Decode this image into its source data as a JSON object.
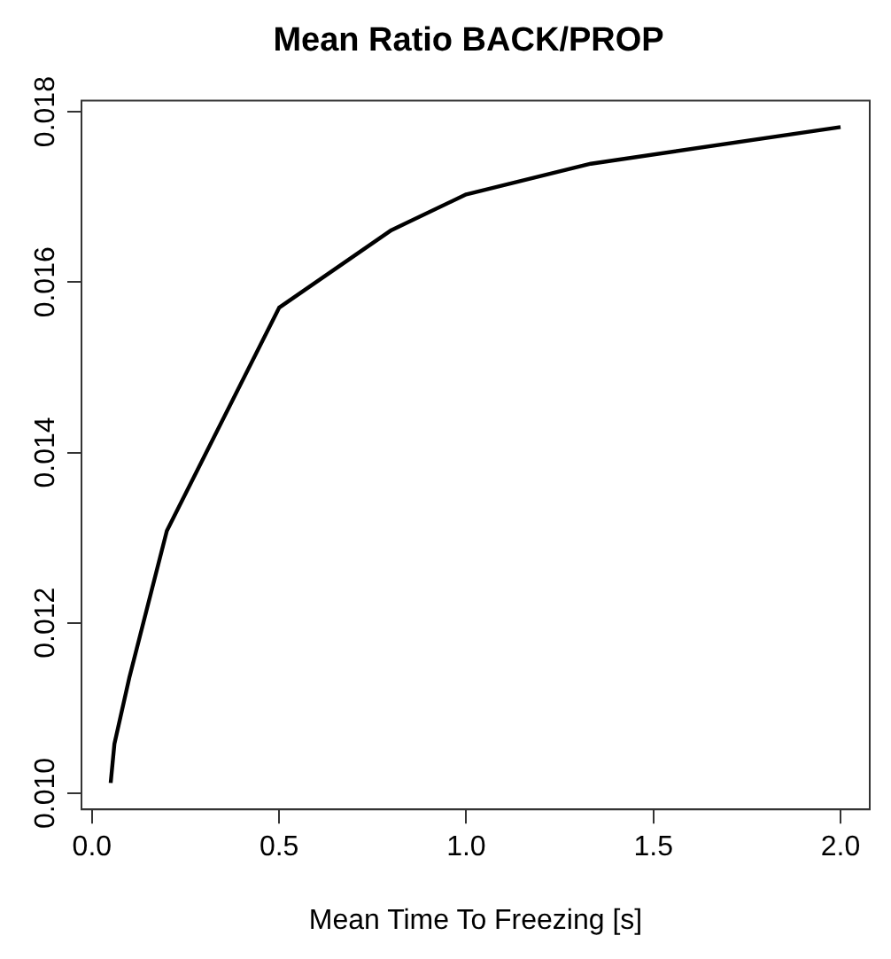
{
  "chart_data": {
    "type": "line",
    "title": "Mean Ratio BACK/PROP",
    "xlabel": "Mean Time To Freezing [s]",
    "x": [
      0.05,
      0.06,
      0.1,
      0.2,
      0.5,
      0.8,
      1.0,
      1.333,
      2.0
    ],
    "series": [
      {
        "color": "#000000",
        "values": [
          0.01012,
          0.01058,
          0.01136,
          0.01308,
          0.0157,
          0.01661,
          0.01703,
          0.01739,
          0.01782
        ]
      }
    ],
    "xlim": [
      -0.028,
      2.078
    ],
    "xticks": [
      {
        "value": 0,
        "label": "0.0"
      },
      {
        "value": 0.5,
        "label": "0.5"
      },
      {
        "value": 1,
        "label": "1.0"
      },
      {
        "value": 1.5,
        "label": "1.5"
      },
      {
        "value": 2,
        "label": "2.0"
      }
    ],
    "ylim": [
      0.00981,
      0.01813
    ],
    "yticks": [
      {
        "value": 0.01,
        "label": "0.010"
      },
      {
        "value": 0.012,
        "label": "0.012"
      },
      {
        "value": 0.014,
        "label": "0.014"
      },
      {
        "value": 0.016,
        "label": "0.016"
      },
      {
        "value": 0.018,
        "label": "0.018"
      }
    ]
  }
}
